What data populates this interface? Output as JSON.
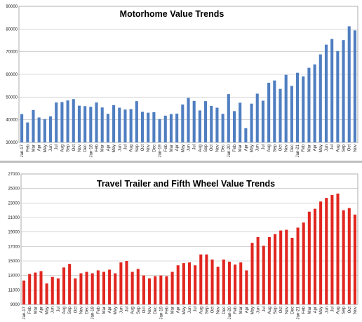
{
  "chart_data": [
    {
      "type": "bar",
      "title": "Motorhome Value Trends",
      "xlabel": "",
      "ylabel": "",
      "ylim": [
        30000,
        90000
      ],
      "yticks": [
        30000,
        40000,
        50000,
        60000,
        70000,
        80000,
        90000
      ],
      "grid": true,
      "legend": "none",
      "bar_color": "#4f7ec1",
      "categories": [
        "Jan-17",
        "Feb",
        "Mar",
        "Apr",
        "May",
        "Jun",
        "Jul",
        "Aug",
        "Sep",
        "Oct",
        "Nov",
        "Dec",
        "Jan-18",
        "Feb",
        "Mar",
        "Apr",
        "May",
        "Jun",
        "Jul",
        "Aug",
        "Sep",
        "Oct",
        "Nov",
        "Dec",
        "Jan-19",
        "Feb",
        "Mar",
        "Apr",
        "May",
        "Jun",
        "Jul",
        "Aug",
        "Sep",
        "Oct",
        "Nov",
        "Dec",
        "Jan-20",
        "Feb",
        "Mar",
        "Apr",
        "May",
        "Jun",
        "Jul",
        "Aug",
        "Sep",
        "Oct",
        "Nov",
        "Dec",
        "Jan-21",
        "Feb",
        "Mar",
        "Apr",
        "May",
        "Jun",
        "Jul",
        "Aug",
        "Sep",
        "Oct",
        "Nov"
      ],
      "values": [
        42500,
        38800,
        44300,
        41000,
        40300,
        41500,
        47600,
        47800,
        48500,
        49100,
        46200,
        46000,
        45700,
        47600,
        45400,
        42600,
        46400,
        45300,
        44500,
        44700,
        48200,
        43500,
        43100,
        43300,
        40300,
        41800,
        42500,
        42700,
        46700,
        49600,
        48300,
        44100,
        48200,
        46100,
        45300,
        42600,
        51300,
        43800,
        47500,
        36300,
        47100,
        51500,
        48400,
        56300,
        57300,
        53600,
        59800,
        54900,
        60700,
        59100,
        62900,
        64400,
        68800,
        73100,
        75600,
        70300,
        75100,
        81200,
        79400
      ]
    },
    {
      "type": "bar",
      "title": "Travel Trailer and Fifth Wheel Value Trends",
      "xlabel": "",
      "ylabel": "",
      "ylim": [
        9000,
        27000
      ],
      "yticks": [
        9000,
        11000,
        13000,
        15000,
        17000,
        19000,
        21000,
        23000,
        25000,
        27000
      ],
      "grid": true,
      "legend": "none",
      "bar_color": "#e0261f",
      "categories": [
        "Jan-17",
        "Feb",
        "Mar",
        "Apr",
        "May",
        "Jun",
        "Jul",
        "Aug",
        "Sep",
        "Oct",
        "Nov",
        "Dec",
        "Jan-18",
        "Feb",
        "Mar",
        "Apr",
        "May",
        "Jun",
        "Jul",
        "Aug",
        "Sep",
        "Oct",
        "Nov",
        "Dec",
        "Jan-19",
        "Feb",
        "Mar",
        "Apr",
        "May",
        "Jun",
        "Jul",
        "Aug",
        "Sep",
        "Oct",
        "Nov",
        "Dec",
        "Jan-20",
        "Feb",
        "Mar",
        "Apr",
        "May",
        "Jun",
        "Jul",
        "Aug",
        "Sep",
        "Oct",
        "Nov",
        "Dec",
        "Jan-21",
        "Feb",
        "Mar",
        "Apr",
        "May",
        "Jun",
        "Jul",
        "Aug",
        "Sep",
        "Oct",
        "Nov"
      ],
      "values": [
        12300,
        13200,
        13400,
        13600,
        11900,
        12800,
        12600,
        14100,
        14600,
        12600,
        13300,
        13500,
        13300,
        13700,
        13500,
        13800,
        13300,
        14800,
        15000,
        13500,
        13900,
        13000,
        12600,
        12900,
        13000,
        12900,
        13500,
        14400,
        14700,
        14800,
        14400,
        15900,
        15900,
        15200,
        14200,
        15200,
        14900,
        14500,
        14800,
        13700,
        17500,
        18300,
        17100,
        18300,
        18700,
        19200,
        19300,
        18200,
        19600,
        20300,
        21800,
        22200,
        23200,
        23700,
        24100,
        24300,
        22000,
        22300,
        21400
      ]
    }
  ]
}
